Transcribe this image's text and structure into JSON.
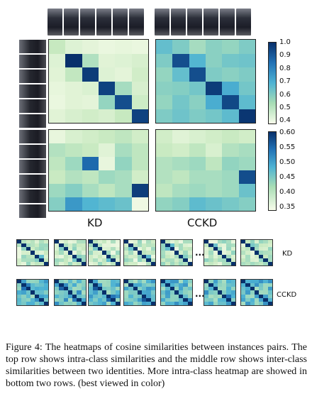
{
  "colorbars": {
    "top": {
      "ticks": [
        "1.0",
        "0.9",
        "0.8",
        "0.7",
        "0.6",
        "0.5",
        "0.4"
      ]
    },
    "middle": {
      "ticks": [
        "0.60",
        "0.55",
        "0.50",
        "0.45",
        "0.40",
        "0.35"
      ]
    }
  },
  "colors": {
    "low": "#f7fcea",
    "mid": "#8fd3c0",
    "high": "#08306b"
  },
  "heatmaps": {
    "top_left": [
      [
        0.55,
        0.48,
        0.46,
        0.44,
        0.45,
        0.44
      ],
      [
        0.48,
        1.0,
        0.6,
        0.47,
        0.48,
        0.5
      ],
      [
        0.47,
        0.56,
        0.98,
        0.48,
        0.46,
        0.52
      ],
      [
        0.45,
        0.47,
        0.49,
        0.97,
        0.62,
        0.5
      ],
      [
        0.44,
        0.47,
        0.46,
        0.66,
        0.95,
        0.53
      ],
      [
        0.47,
        0.5,
        0.52,
        0.5,
        0.55,
        0.97
      ]
    ],
    "top_right": [
      [
        0.75,
        0.7,
        0.62,
        0.68,
        0.66,
        0.7
      ],
      [
        0.7,
        0.95,
        0.78,
        0.68,
        0.72,
        0.73
      ],
      [
        0.66,
        0.75,
        0.95,
        0.7,
        0.68,
        0.7
      ],
      [
        0.68,
        0.69,
        0.72,
        0.98,
        0.8,
        0.72
      ],
      [
        0.66,
        0.72,
        0.68,
        0.8,
        0.96,
        0.76
      ],
      [
        0.7,
        0.73,
        0.7,
        0.72,
        0.76,
        0.99
      ]
    ],
    "mid_left": [
      [
        0.37,
        0.39,
        0.4,
        0.41,
        0.42,
        0.4
      ],
      [
        0.43,
        0.42,
        0.41,
        0.38,
        0.44,
        0.42
      ],
      [
        0.42,
        0.45,
        0.56,
        0.37,
        0.46,
        0.42
      ],
      [
        0.41,
        0.43,
        0.42,
        0.45,
        0.44,
        0.4
      ],
      [
        0.45,
        0.47,
        0.44,
        0.42,
        0.44,
        0.59
      ],
      [
        0.47,
        0.53,
        0.51,
        0.5,
        0.49,
        0.36
      ]
    ],
    "mid_right": [
      [
        0.4,
        0.38,
        0.39,
        0.4,
        0.41,
        0.4
      ],
      [
        0.41,
        0.4,
        0.42,
        0.39,
        0.43,
        0.44
      ],
      [
        0.43,
        0.44,
        0.45,
        0.42,
        0.46,
        0.45
      ],
      [
        0.43,
        0.42,
        0.44,
        0.44,
        0.45,
        0.58
      ],
      [
        0.42,
        0.44,
        0.45,
        0.44,
        0.45,
        0.49
      ],
      [
        0.46,
        0.47,
        0.5,
        0.49,
        0.48,
        0.47
      ]
    ]
  },
  "labels": {
    "kd": "KD",
    "cckd": "CCKD",
    "row_kd": "KD",
    "row_cckd": "CCKD",
    "ellipsis": "..."
  },
  "caption": "Figure 4: The heatmaps of cosine similarities between instances pairs. The top row shows intra-class similarities and the middle row shows inter-class similarities between two identities. More intra-class heatmap are showed in bottom two rows. (best viewed in color)"
}
